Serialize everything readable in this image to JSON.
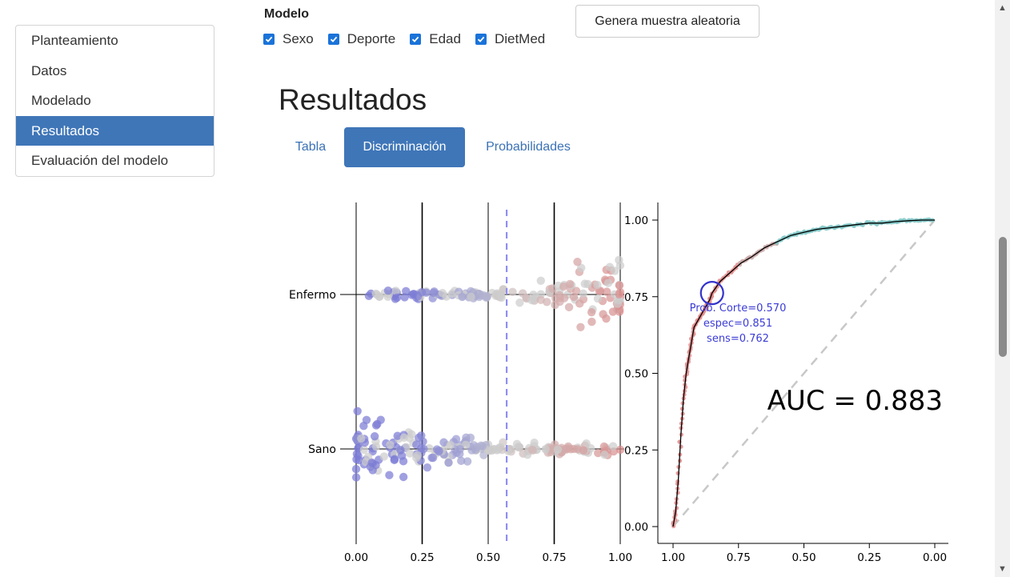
{
  "sidebar": {
    "items": [
      {
        "label": "Planteamiento",
        "active": false
      },
      {
        "label": "Datos",
        "active": false
      },
      {
        "label": "Modelado",
        "active": false
      },
      {
        "label": "Resultados",
        "active": true
      },
      {
        "label": "Evaluación del modelo",
        "active": false
      }
    ]
  },
  "model": {
    "title": "Modelo",
    "checkboxes": [
      {
        "label": "Sexo",
        "checked": true
      },
      {
        "label": "Deporte",
        "checked": true
      },
      {
        "label": "Edad",
        "checked": true
      },
      {
        "label": "DietMed",
        "checked": true
      }
    ],
    "random_button": "Genera muestra aleatoria"
  },
  "results": {
    "title": "Resultados",
    "tabs": [
      "Tabla",
      "Discriminación",
      "Probabilidades"
    ],
    "active_tab": "Discriminación"
  },
  "colors": {
    "accent": "#3f76b8",
    "checkbox": "#1a73d9",
    "highlight": "#3333cc"
  },
  "chart_data": [
    {
      "type": "scatter",
      "title": "",
      "xlabel": "",
      "ylabel": "",
      "x_ticks": [
        "0.00",
        "0.25",
        "0.50",
        "0.75",
        "1.00"
      ],
      "xlim": [
        0,
        1
      ],
      "categories": [
        "Enfermo",
        "Sano"
      ],
      "cutoff": 0.57,
      "vertical_lines": [
        0,
        0.25,
        0.5,
        0.75,
        1
      ],
      "point_color_scale": [
        "#7b7bd6",
        "#cdcdcd",
        "#d98f8f"
      ]
    },
    {
      "type": "line",
      "title": "",
      "xlabel": "",
      "ylabel": "",
      "x_ticks": [
        "1.00",
        "0.75",
        "0.50",
        "0.25",
        "0.00"
      ],
      "y_ticks": [
        "0.00",
        "0.25",
        "0.50",
        "0.75",
        "1.00"
      ],
      "xlim": [
        1,
        0
      ],
      "ylim": [
        0,
        1
      ],
      "roc_x_specificity": [
        1.0,
        0.99,
        0.98,
        0.97,
        0.96,
        0.95,
        0.94,
        0.93,
        0.92,
        0.9,
        0.88,
        0.86,
        0.851,
        0.82,
        0.78,
        0.74,
        0.7,
        0.65,
        0.6,
        0.55,
        0.5,
        0.45,
        0.4,
        0.35,
        0.3,
        0.25,
        0.2,
        0.15,
        0.1,
        0.05,
        0.0
      ],
      "roc_y_sensitivity": [
        0.0,
        0.05,
        0.15,
        0.3,
        0.42,
        0.5,
        0.55,
        0.6,
        0.65,
        0.68,
        0.71,
        0.74,
        0.762,
        0.8,
        0.83,
        0.86,
        0.88,
        0.91,
        0.93,
        0.95,
        0.96,
        0.97,
        0.975,
        0.98,
        0.985,
        0.99,
        0.99,
        0.995,
        0.998,
        1.0,
        1.0
      ],
      "annotation": [
        "Prob. Corte=0.570",
        "espec=0.851",
        "sens=0.762"
      ],
      "auc_label": "AUC = 0.883"
    }
  ]
}
